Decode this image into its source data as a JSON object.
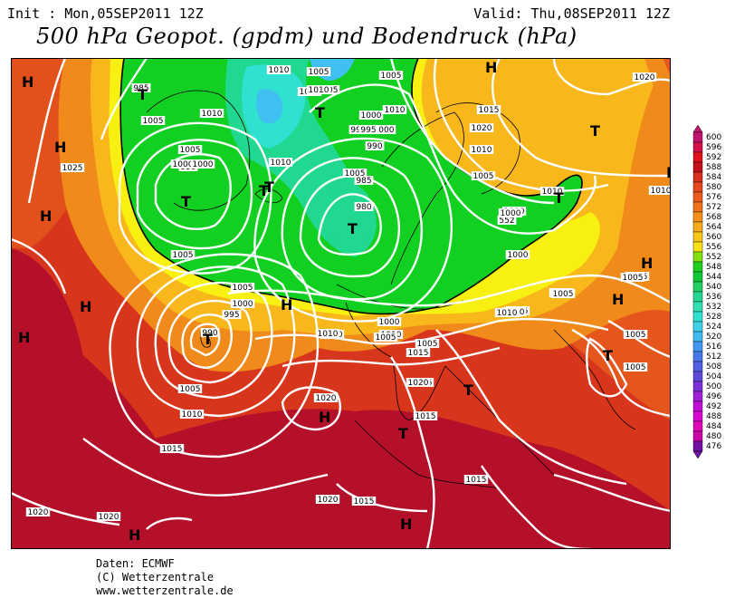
{
  "header": {
    "init": "Init : Mon,05SEP2011 12Z",
    "valid": "Valid: Thu,08SEP2011 12Z",
    "title": "500 hPa Geopot. (gpdm) und Bodendruck (hPa)"
  },
  "credits": {
    "line1": "Daten: ECMWF",
    "line2": "(C) Wetterzentrale",
    "line3": "www.wetterzentrale.de"
  },
  "colors": {
    "deep_red": "#b4102a",
    "red": "#d8361c",
    "orange_red": "#e85c1a",
    "orange": "#f08a1a",
    "light_orange": "#f8b81c",
    "yellow": "#f8f010",
    "green": "#10d020",
    "teal": "#20d890",
    "cyan": "#30e0d0",
    "light_blue": "#40c0f0"
  },
  "legend": {
    "values": [
      "600",
      "596",
      "592",
      "588",
      "584",
      "580",
      "576",
      "572",
      "568",
      "564",
      "560",
      "556",
      "552",
      "548",
      "544",
      "540",
      "536",
      "532",
      "528",
      "524",
      "520",
      "516",
      "512",
      "508",
      "504",
      "500",
      "496",
      "492",
      "488",
      "484",
      "480",
      "476"
    ],
    "colors": [
      "#c2146e",
      "#d2104a",
      "#e01018",
      "#c41018",
      "#d8301c",
      "#e6461e",
      "#ec5a1e",
      "#f0721a",
      "#f4901a",
      "#f8aa1a",
      "#f8c618",
      "#f8e014",
      "#80e010",
      "#20d020",
      "#10c838",
      "#20d060",
      "#20d890",
      "#30e0b0",
      "#30e0d0",
      "#40d0e8",
      "#40b8f0",
      "#4098f0",
      "#4878e8",
      "#5060e0",
      "#6048d8",
      "#8030d8",
      "#a020d8",
      "#c010d8",
      "#d808d0",
      "#e008b8",
      "#c808a8",
      "#7010a0"
    ]
  },
  "map_labels": {
    "pressure": [
      "1010",
      "1005",
      "985",
      "1005",
      "1010",
      "995",
      "990",
      "1005",
      "1010",
      "1015",
      "1005",
      "1000",
      "995",
      "1005",
      "1010",
      "1020",
      "1025",
      "1005",
      "1010",
      "1000",
      "985",
      "980",
      "1000",
      "995",
      "1000",
      "990",
      "1005",
      "1005",
      "1000",
      "995",
      "990",
      "1005",
      "1010",
      "1000",
      "1010",
      "1015",
      "1020",
      "1015",
      "1010",
      "1005",
      "1020",
      "1015",
      "1020",
      "1020",
      "1020",
      "1015",
      "1005",
      "1010",
      "1005",
      "1000",
      "1010",
      "1005",
      "1005",
      "1015",
      "1005",
      "1010",
      "1015",
      "1010",
      "1005",
      "1005",
      "1010",
      "1005",
      "552",
      "1000",
      "1005",
      "1010",
      "1010",
      "1000",
      "1015",
      "1020"
    ],
    "highs": [
      "H",
      "H",
      "H",
      "H",
      "H",
      "H",
      "H",
      "H",
      "H",
      "H",
      "H",
      "H",
      "H"
    ],
    "lows": [
      "T",
      "T",
      "T",
      "T",
      "T",
      "T",
      "T",
      "T",
      "T",
      "T",
      "T",
      "T"
    ]
  }
}
